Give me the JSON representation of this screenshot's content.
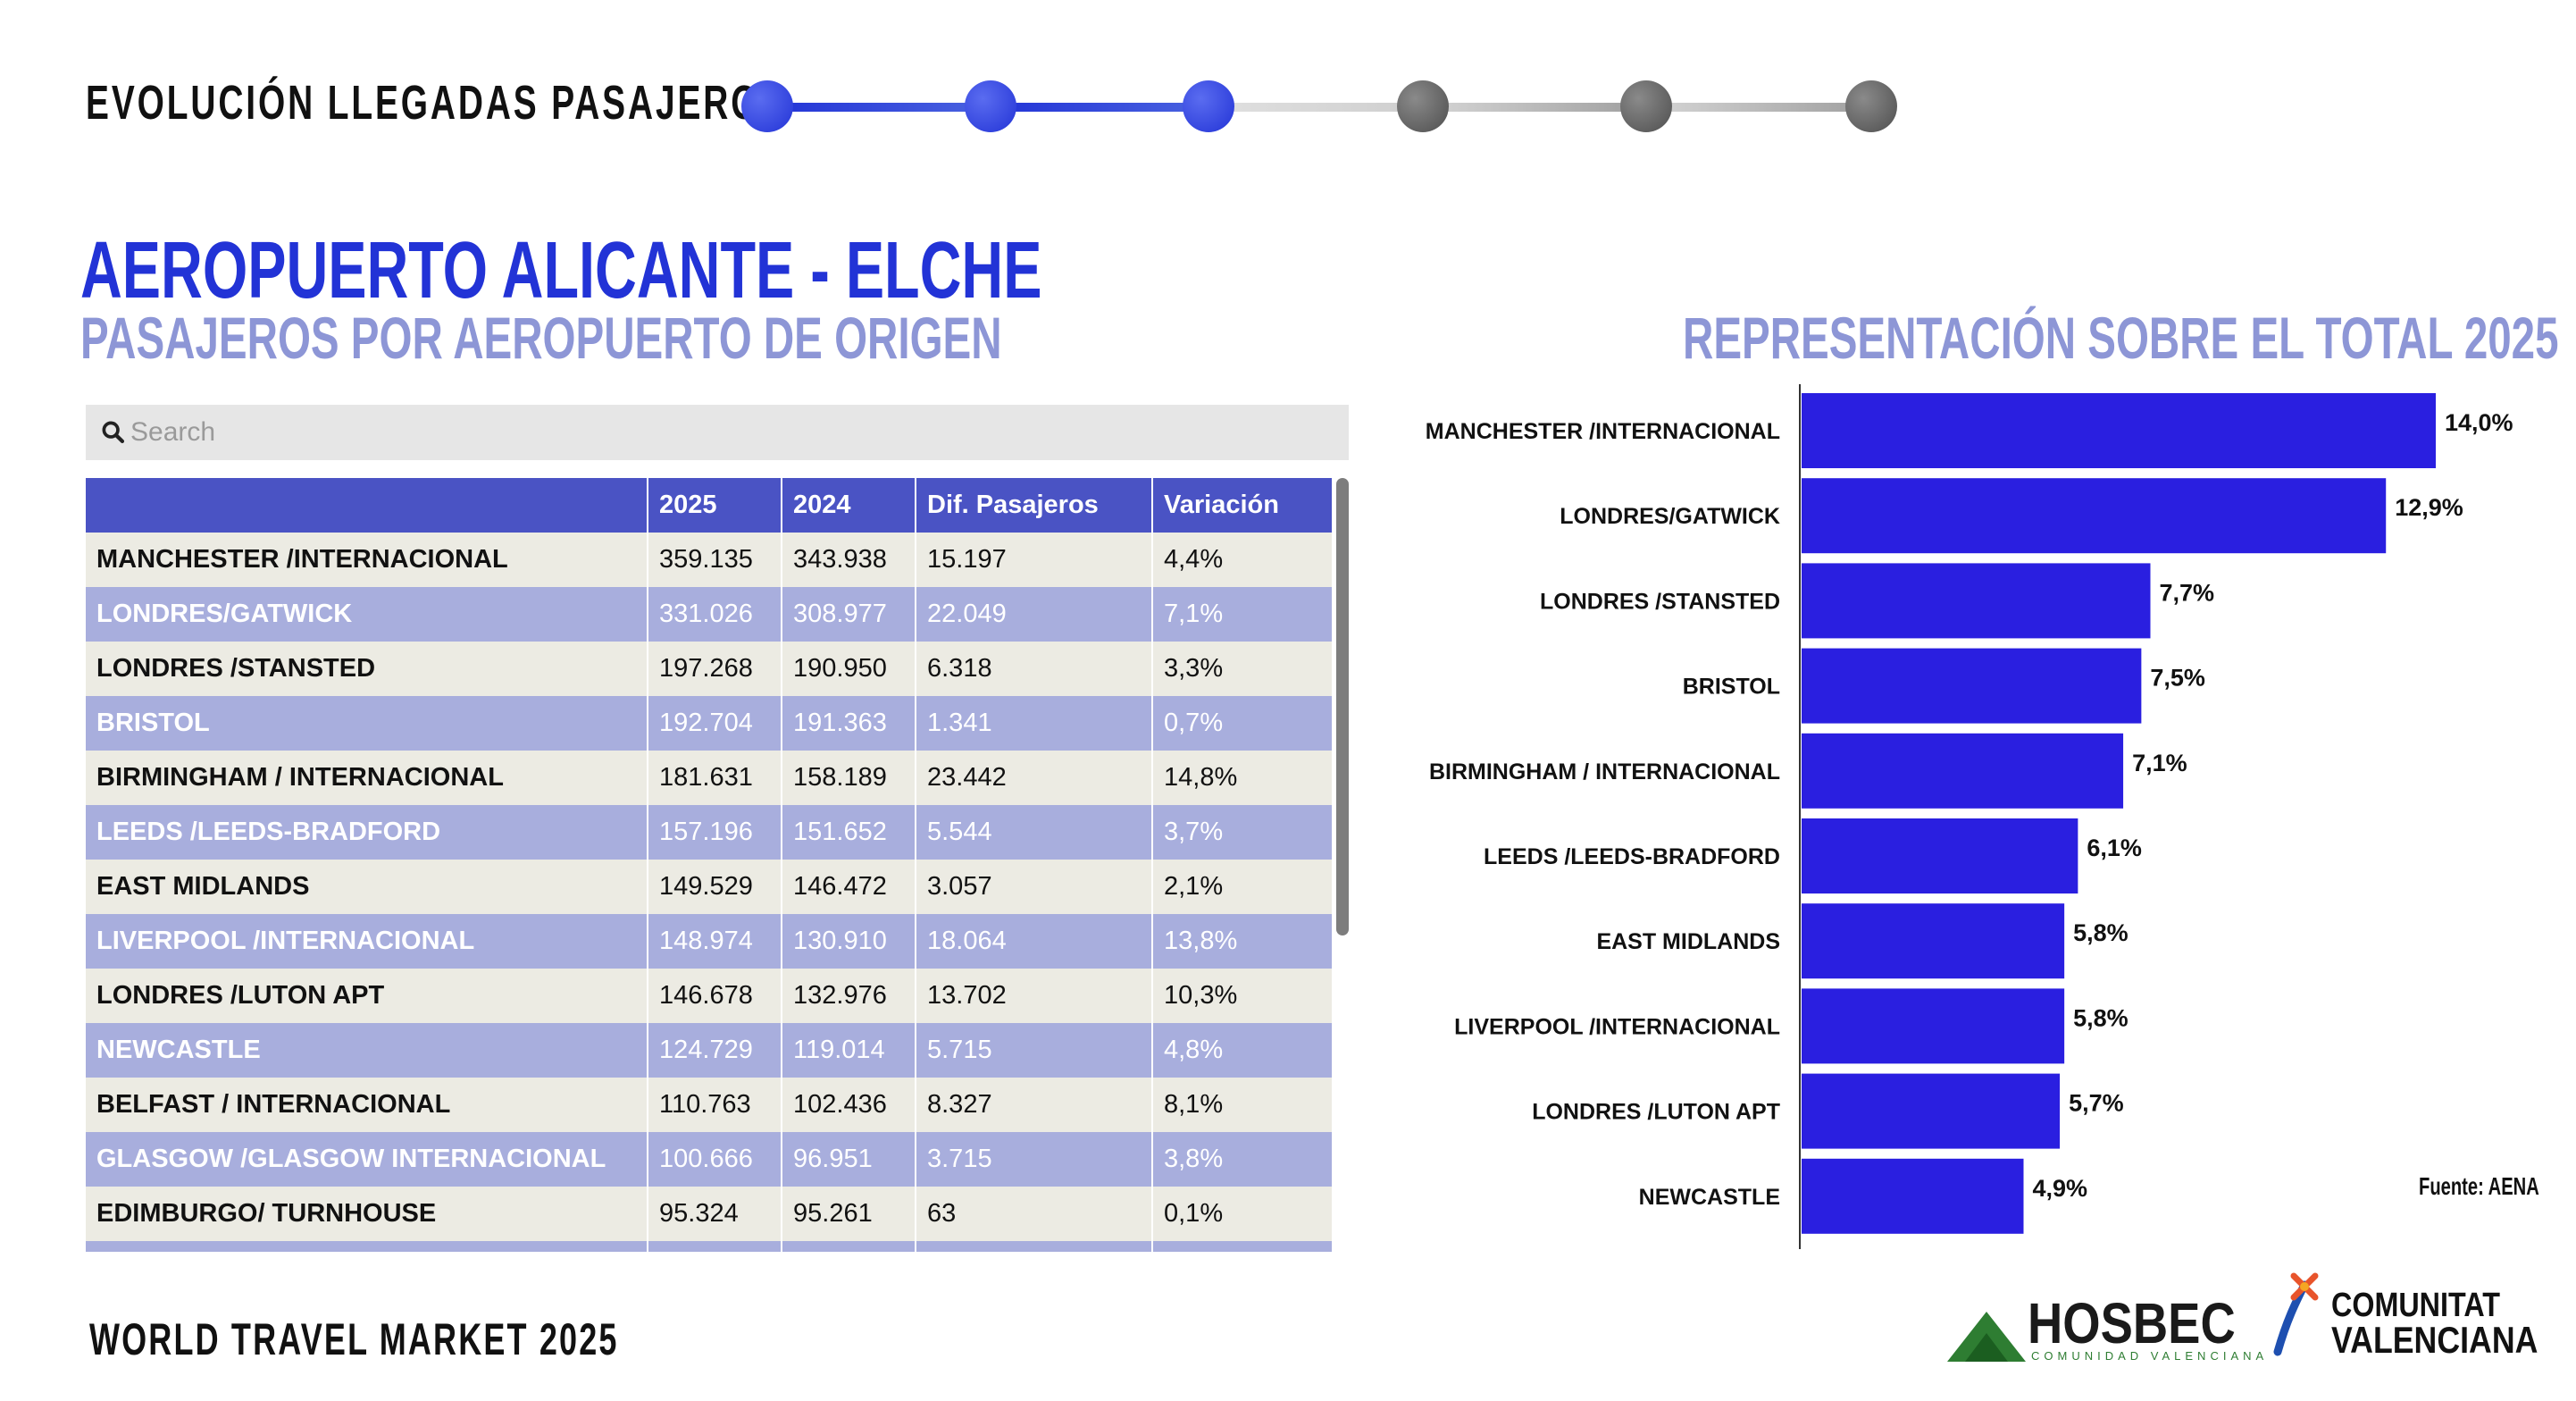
{
  "header": {
    "title": "EVOLUCIÓN LLEGADAS PASAJEROS",
    "progress": {
      "total_steps": 6,
      "active_steps": 3,
      "active_color": "#2233d6",
      "inactive_color": "#9a9a9a"
    }
  },
  "main": {
    "title": "AEROPUERTO ALICANTE - ELCHE",
    "subtitle": "PASAJEROS POR AEROPUERTO DE ORIGEN"
  },
  "search": {
    "placeholder": "Search",
    "value": "",
    "icon": "search-icon"
  },
  "table": {
    "columns": [
      "",
      "2025",
      "2024",
      "Dif. Pasajeros",
      "Variación"
    ],
    "rows": [
      [
        "MANCHESTER /INTERNACIONAL",
        "359.135",
        "343.938",
        "15.197",
        "4,4%"
      ],
      [
        "LONDRES/GATWICK",
        "331.026",
        "308.977",
        "22.049",
        "7,1%"
      ],
      [
        "LONDRES /STANSTED",
        "197.268",
        "190.950",
        "6.318",
        "3,3%"
      ],
      [
        "BRISTOL",
        "192.704",
        "191.363",
        "1.341",
        "0,7%"
      ],
      [
        "BIRMINGHAM / INTERNACIONAL",
        "181.631",
        "158.189",
        "23.442",
        "14,8%"
      ],
      [
        "LEEDS /LEEDS-BRADFORD",
        "157.196",
        "151.652",
        "5.544",
        "3,7%"
      ],
      [
        "EAST MIDLANDS",
        "149.529",
        "146.472",
        "3.057",
        "2,1%"
      ],
      [
        "LIVERPOOL /INTERNACIONAL",
        "148.974",
        "130.910",
        "18.064",
        "13,8%"
      ],
      [
        "LONDRES /LUTON APT",
        "146.678",
        "132.976",
        "13.702",
        "10,3%"
      ],
      [
        "NEWCASTLE",
        "124.729",
        "119.014",
        "5.715",
        "4,8%"
      ],
      [
        "BELFAST / INTERNACIONAL",
        "110.763",
        "102.436",
        "8.327",
        "8,1%"
      ],
      [
        "GLASGOW /GLASGOW INTERNACIONAL",
        "100.666",
        "96.951",
        "3.715",
        "3,8%"
      ],
      [
        "EDIMBURGO/ TURNHOUSE",
        "95.324",
        "95.261",
        "63",
        "0,1%"
      ]
    ],
    "colors": {
      "header": "#4a53c4",
      "odd_row": "#ecebe3",
      "even_row": "#a8aedd"
    }
  },
  "chart_data": {
    "type": "bar",
    "orientation": "horizontal",
    "title": "REPRESENTACIÓN SOBRE EL TOTAL 2025",
    "categories": [
      "MANCHESTER /INTERNACIONAL",
      "LONDRES/GATWICK",
      "LONDRES /STANSTED",
      "BRISTOL",
      "BIRMINGHAM / INTERNACIONAL",
      "LEEDS /LEEDS-BRADFORD",
      "EAST MIDLANDS",
      "LIVERPOOL /INTERNACIONAL",
      "LONDRES /LUTON APT",
      "NEWCASTLE"
    ],
    "values": [
      14.0,
      12.9,
      7.7,
      7.5,
      7.1,
      6.1,
      5.8,
      5.8,
      5.7,
      4.9
    ],
    "data_labels": [
      "14,0%",
      "12,9%",
      "7,7%",
      "7,5%",
      "7,1%",
      "6,1%",
      "5,8%",
      "5,8%",
      "5,7%",
      "4,9%"
    ],
    "xlim": [
      0,
      14
    ],
    "grid": false,
    "bar_color": "#2a1fe0"
  },
  "source": "Fuente: AENA",
  "footer": {
    "title": "WORLD TRAVEL MARKET 2025",
    "hosbec": {
      "name": "HOSBEC",
      "tagline": "COMUNIDAD VALENCIANA"
    },
    "cv": {
      "line1": "COMUNITAT",
      "line2": "VALENCIANA"
    }
  }
}
